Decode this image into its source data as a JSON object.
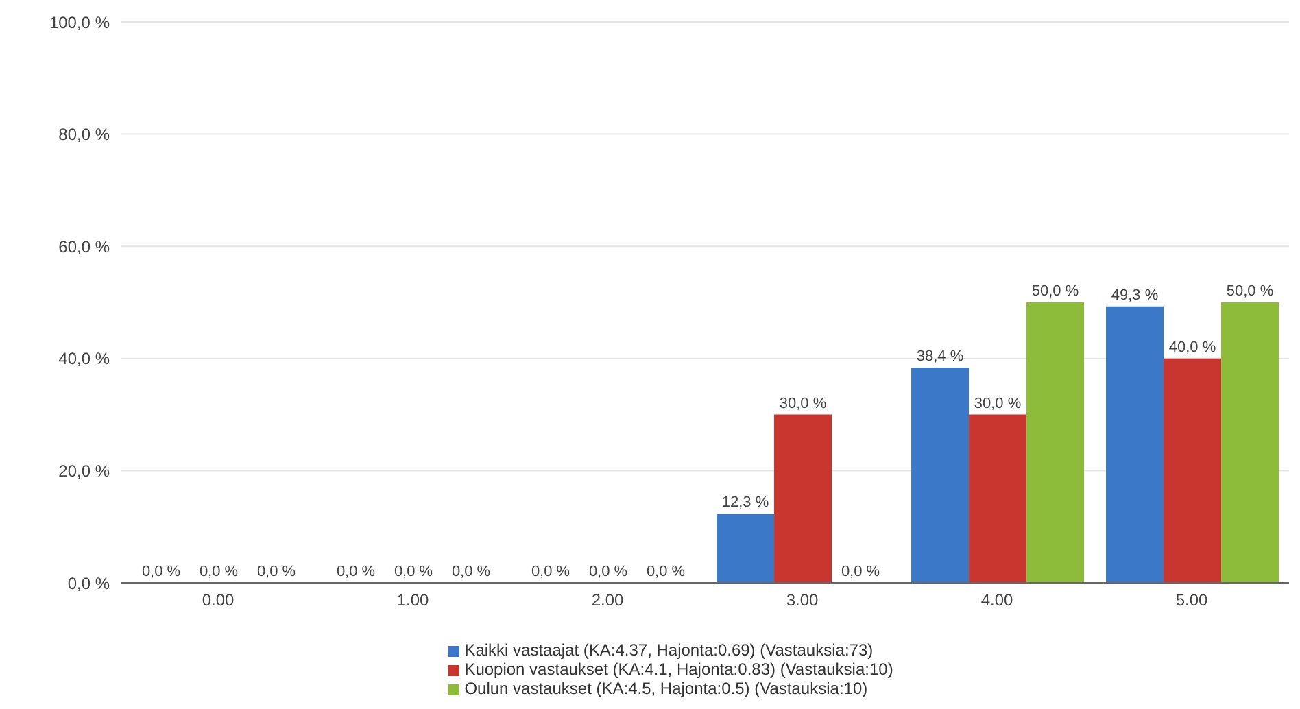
{
  "chart_data": {
    "type": "bar",
    "categories": [
      "0.00",
      "1.00",
      "2.00",
      "3.00",
      "4.00",
      "5.00"
    ],
    "series": [
      {
        "name": "Kaikki vastaajat (KA:4.37, Hajonta:0.69) (Vastauksia:73)",
        "color": "#3b78c8",
        "values": [
          0,
          0,
          0,
          12.3,
          38.4,
          49.3
        ],
        "value_labels": [
          "0,0 %",
          "0,0 %",
          "0,0 %",
          "12,3 %",
          "38,4 %",
          "49,3 %"
        ]
      },
      {
        "name": "Kuopion vastaukset (KA:4.1, Hajonta:0.83) (Vastauksia:10)",
        "color": "#c8362f",
        "values": [
          0,
          0,
          0,
          30,
          30,
          40
        ],
        "value_labels": [
          "0,0 %",
          "0,0 %",
          "0,0 %",
          "30,0 %",
          "30,0 %",
          "40,0 %"
        ]
      },
      {
        "name": "Oulun vastaukset (KA:4.5, Hajonta:0.5) (Vastauksia:10)",
        "color": "#8dbb3a",
        "values": [
          0,
          0,
          0,
          0,
          50,
          50
        ],
        "value_labels": [
          "0,0 %",
          "0,0 %",
          "0,0 %",
          "0,0 %",
          "50,0 %",
          "50,0 %"
        ]
      }
    ],
    "ylim": [
      0,
      100
    ],
    "yticks": [
      {
        "value": 0,
        "label": "0,0 %"
      },
      {
        "value": 20,
        "label": "20,0 %"
      },
      {
        "value": 40,
        "label": "40,0 %"
      },
      {
        "value": 60,
        "label": "60,0 %"
      },
      {
        "value": 80,
        "label": "80,0 %"
      },
      {
        "value": 100,
        "label": "100,0 %"
      }
    ],
    "grid": "y",
    "legend": "bottom"
  }
}
